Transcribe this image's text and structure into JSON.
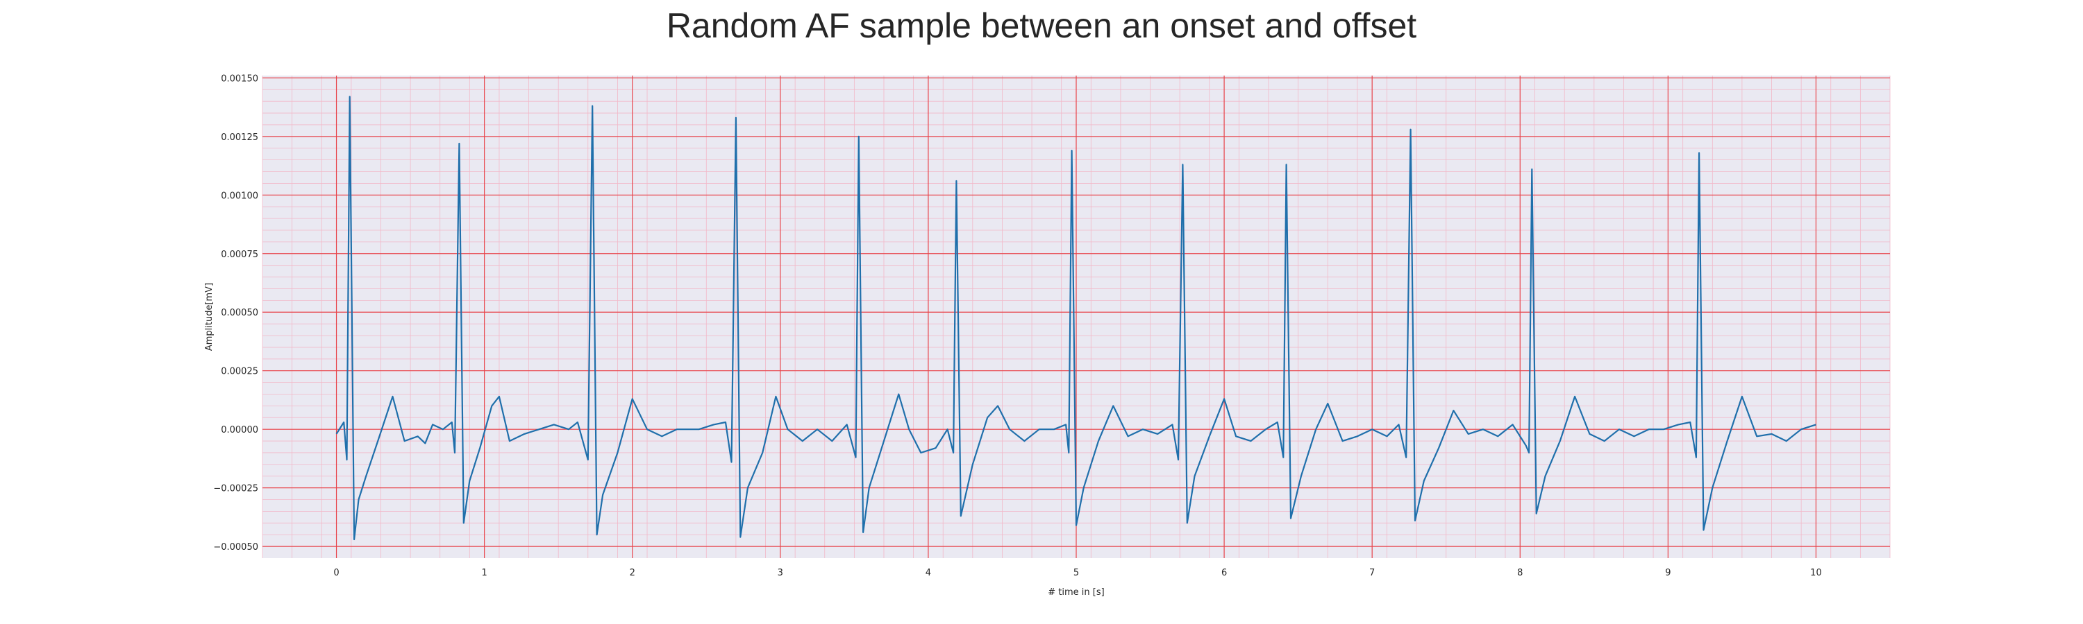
{
  "chart_data": {
    "type": "line",
    "title": "Random AF sample between an onset and offset",
    "xlabel": "# time in [s]",
    "ylabel": "Amplitude[mV]",
    "xlim": [
      -0.5,
      10.5
    ],
    "ylim": [
      -0.00055,
      0.00151
    ],
    "xticks": [
      0,
      1,
      2,
      3,
      4,
      5,
      6,
      7,
      8,
      9,
      10
    ],
    "xtick_labels": [
      "0",
      "1",
      "2",
      "3",
      "4",
      "5",
      "6",
      "7",
      "8",
      "9",
      "10"
    ],
    "yticks": [
      0.0015,
      0.00125,
      0.001,
      0.00075,
      0.0005,
      0.00025,
      0.0,
      -0.00025,
      -0.0005
    ],
    "ytick_labels": [
      "0.00150",
      "0.00125",
      "0.00100",
      "0.00075",
      "0.00050",
      "0.00025",
      "0.00000",
      "−0.00025",
      "−0.00050"
    ],
    "grid": true,
    "minor_grid": true,
    "background_color": "#eae9f2",
    "major_grid_color": "#e8444a",
    "minor_grid_color": "#f2b8c8",
    "line_color": "#1f6fab",
    "beats": [
      {
        "t": 0.09,
        "peak": 0.00142,
        "trough": -0.00047
      },
      {
        "t": 0.83,
        "peak": 0.00122,
        "trough": -0.0004
      },
      {
        "t": 1.73,
        "peak": 0.00138,
        "trough": -0.00045
      },
      {
        "t": 2.7,
        "peak": 0.00133,
        "trough": -0.00046
      },
      {
        "t": 3.53,
        "peak": 0.00125,
        "trough": -0.00044
      },
      {
        "t": 4.19,
        "peak": 0.00106,
        "trough": -0.00037
      },
      {
        "t": 4.97,
        "peak": 0.00119,
        "trough": -0.00041
      },
      {
        "t": 5.72,
        "peak": 0.00113,
        "trough": -0.0004
      },
      {
        "t": 6.42,
        "peak": 0.00113,
        "trough": -0.00038
      },
      {
        "t": 7.26,
        "peak": 0.00128,
        "trough": -0.00039
      },
      {
        "t": 8.08,
        "peak": 0.00111,
        "trough": -0.00036
      },
      {
        "t": 9.21,
        "peak": 0.00118,
        "trough": -0.00043
      }
    ],
    "x_range": [
      0,
      10
    ],
    "series": [
      {
        "name": "",
        "points": [
          [
            0.0,
            -2e-05
          ],
          [
            0.05,
            3e-05
          ],
          [
            0.07,
            -0.00013
          ],
          [
            0.09,
            0.00142
          ],
          [
            0.12,
            -0.00047
          ],
          [
            0.15,
            -0.0003
          ],
          [
            0.2,
            -0.0002
          ],
          [
            0.28,
            -5e-05
          ],
          [
            0.38,
            0.00014
          ],
          [
            0.46,
            -5e-05
          ],
          [
            0.55,
            -3e-05
          ],
          [
            0.6,
            -6e-05
          ],
          [
            0.65,
            2e-05
          ],
          [
            0.72,
            0.0
          ],
          [
            0.78,
            3e-05
          ],
          [
            0.8,
            -0.0001
          ],
          [
            0.83,
            0.00122
          ],
          [
            0.86,
            -0.0004
          ],
          [
            0.9,
            -0.00022
          ],
          [
            0.97,
            -8e-05
          ],
          [
            1.05,
            0.0001
          ],
          [
            1.1,
            0.00014
          ],
          [
            1.17,
            -5e-05
          ],
          [
            1.27,
            -2e-05
          ],
          [
            1.37,
            0.0
          ],
          [
            1.47,
            2e-05
          ],
          [
            1.57,
            0.0
          ],
          [
            1.63,
            3e-05
          ],
          [
            1.7,
            -0.00013
          ],
          [
            1.73,
            0.00138
          ],
          [
            1.76,
            -0.00045
          ],
          [
            1.8,
            -0.00028
          ],
          [
            1.9,
            -0.0001
          ],
          [
            2.0,
            0.00013
          ],
          [
            2.1,
            0.0
          ],
          [
            2.2,
            -3e-05
          ],
          [
            2.3,
            0.0
          ],
          [
            2.45,
            0.0
          ],
          [
            2.55,
            2e-05
          ],
          [
            2.63,
            3e-05
          ],
          [
            2.67,
            -0.00014
          ],
          [
            2.7,
            0.00133
          ],
          [
            2.73,
            -0.00046
          ],
          [
            2.78,
            -0.00025
          ],
          [
            2.88,
            -0.0001
          ],
          [
            2.97,
            0.00014
          ],
          [
            3.05,
            0.0
          ],
          [
            3.15,
            -5e-05
          ],
          [
            3.25,
            0.0
          ],
          [
            3.35,
            -5e-05
          ],
          [
            3.45,
            2e-05
          ],
          [
            3.51,
            -0.00012
          ],
          [
            3.53,
            0.00125
          ],
          [
            3.56,
            -0.00044
          ],
          [
            3.6,
            -0.00025
          ],
          [
            3.7,
            -5e-05
          ],
          [
            3.8,
            0.00015
          ],
          [
            3.87,
            0.0
          ],
          [
            3.95,
            -0.0001
          ],
          [
            4.05,
            -8e-05
          ],
          [
            4.13,
            0.0
          ],
          [
            4.17,
            -0.0001
          ],
          [
            4.19,
            0.00106
          ],
          [
            4.22,
            -0.00037
          ],
          [
            4.3,
            -0.00015
          ],
          [
            4.4,
            5e-05
          ],
          [
            4.47,
            0.0001
          ],
          [
            4.55,
            0.0
          ],
          [
            4.65,
            -5e-05
          ],
          [
            4.75,
            0.0
          ],
          [
            4.85,
            0.0
          ],
          [
            4.93,
            2e-05
          ],
          [
            4.95,
            -0.0001
          ],
          [
            4.97,
            0.00119
          ],
          [
            5.0,
            -0.00041
          ],
          [
            5.05,
            -0.00025
          ],
          [
            5.15,
            -5e-05
          ],
          [
            5.25,
            0.0001
          ],
          [
            5.35,
            -3e-05
          ],
          [
            5.45,
            0.0
          ],
          [
            5.55,
            -2e-05
          ],
          [
            5.65,
            2e-05
          ],
          [
            5.69,
            -0.00013
          ],
          [
            5.72,
            0.00113
          ],
          [
            5.75,
            -0.0004
          ],
          [
            5.8,
            -0.0002
          ],
          [
            5.9,
            -3e-05
          ],
          [
            6.0,
            0.00013
          ],
          [
            6.08,
            -3e-05
          ],
          [
            6.18,
            -5e-05
          ],
          [
            6.28,
            0.0
          ],
          [
            6.36,
            3e-05
          ],
          [
            6.4,
            -0.00012
          ],
          [
            6.42,
            0.00113
          ],
          [
            6.45,
            -0.00038
          ],
          [
            6.52,
            -0.0002
          ],
          [
            6.62,
            0.0
          ],
          [
            6.7,
            0.00011
          ],
          [
            6.8,
            -5e-05
          ],
          [
            6.9,
            -3e-05
          ],
          [
            7.0,
            0.0
          ],
          [
            7.1,
            -3e-05
          ],
          [
            7.18,
            2e-05
          ],
          [
            7.23,
            -0.00012
          ],
          [
            7.26,
            0.00128
          ],
          [
            7.29,
            -0.00039
          ],
          [
            7.35,
            -0.00022
          ],
          [
            7.45,
            -8e-05
          ],
          [
            7.55,
            8e-05
          ],
          [
            7.65,
            -2e-05
          ],
          [
            7.75,
            0.0
          ],
          [
            7.85,
            -3e-05
          ],
          [
            7.95,
            2e-05
          ],
          [
            8.04,
            -7e-05
          ],
          [
            8.06,
            -0.0001
          ],
          [
            8.08,
            0.00111
          ],
          [
            8.11,
            -0.00036
          ],
          [
            8.17,
            -0.0002
          ],
          [
            8.27,
            -5e-05
          ],
          [
            8.37,
            0.00014
          ],
          [
            8.47,
            -2e-05
          ],
          [
            8.57,
            -5e-05
          ],
          [
            8.67,
            0.0
          ],
          [
            8.77,
            -3e-05
          ],
          [
            8.87,
            0.0
          ],
          [
            8.97,
            0.0
          ],
          [
            9.07,
            2e-05
          ],
          [
            9.15,
            3e-05
          ],
          [
            9.19,
            -0.00012
          ],
          [
            9.21,
            0.00118
          ],
          [
            9.24,
            -0.00043
          ],
          [
            9.3,
            -0.00025
          ],
          [
            9.4,
            -5e-05
          ],
          [
            9.5,
            0.00014
          ],
          [
            9.6,
            -3e-05
          ],
          [
            9.7,
            -2e-05
          ],
          [
            9.8,
            -5e-05
          ],
          [
            9.9,
            0.0
          ],
          [
            10.0,
            2e-05
          ]
        ]
      }
    ]
  }
}
